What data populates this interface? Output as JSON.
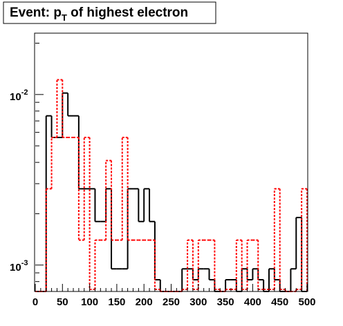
{
  "chart_data": {
    "type": "histogram",
    "title": {
      "text": "Event: p",
      "sub": "T",
      "rest": " of highest electron"
    },
    "bins": [
      0,
      10,
      20,
      30,
      40,
      50,
      60,
      70,
      80,
      90,
      100,
      110,
      120,
      130,
      140,
      150,
      160,
      170,
      180,
      190,
      200,
      210,
      220,
      230,
      240,
      250,
      260,
      270,
      280,
      290,
      300,
      310,
      320,
      330,
      340,
      350,
      360,
      370,
      380,
      390,
      400,
      410,
      420,
      430,
      440,
      450,
      460,
      470,
      480,
      490,
      500
    ],
    "series": [
      {
        "color": "#000000",
        "dashed": false,
        "values": [
          0,
          0,
          0.0075,
          0.0056,
          0.0056,
          0.0102,
          0.0075,
          0.0075,
          0.0028,
          0.0028,
          0.0028,
          0.0018,
          0.0018,
          0.0028,
          0.00095,
          0.00095,
          0.00095,
          0.0028,
          0.0028,
          0.0018,
          0.0028,
          0.0018,
          0.00082,
          0,
          0,
          0,
          0,
          0.00095,
          0.00095,
          0.00082,
          0.00095,
          0.00095,
          0.00082,
          0,
          0,
          0.00082,
          0.00082,
          0,
          0.00095,
          0.00082,
          0.00095,
          0.00082,
          0,
          0.00095,
          0.00082,
          0,
          0,
          0.00095,
          0.0019,
          0
        ]
      },
      {
        "color": "#ff0000",
        "dashed": true,
        "values": [
          0,
          0,
          0.0028,
          0.0056,
          0.0122,
          0.0056,
          0.0056,
          0.0056,
          0.0014,
          0.0056,
          0.00072,
          0.0014,
          0.0014,
          0.0041,
          0.0014,
          0.0014,
          0.0056,
          0.0014,
          0.0014,
          0.0014,
          0.0014,
          0.0014,
          0.00072,
          0,
          0,
          0,
          0,
          0.00072,
          0.0014,
          0.00072,
          0.0014,
          0.0014,
          0.0014,
          0.00072,
          0,
          0.00072,
          0.00072,
          0.0014,
          0.00072,
          0.0014,
          0.0014,
          0.00072,
          0.00072,
          0.00072,
          0.0028,
          0.00072,
          0,
          0,
          0.00072,
          0.0028
        ]
      }
    ],
    "xlim": [
      0,
      500
    ],
    "xticks": [
      0,
      50,
      100,
      150,
      200,
      250,
      300,
      350,
      400,
      450,
      500
    ],
    "ylim": [
      0.0007,
      0.0229
    ],
    "log_y": true,
    "yticks": [
      {
        "value": 0.001,
        "label": "10",
        "exponent": "-3"
      },
      {
        "value": 0.01,
        "label": "10",
        "exponent": "-2"
      }
    ]
  }
}
